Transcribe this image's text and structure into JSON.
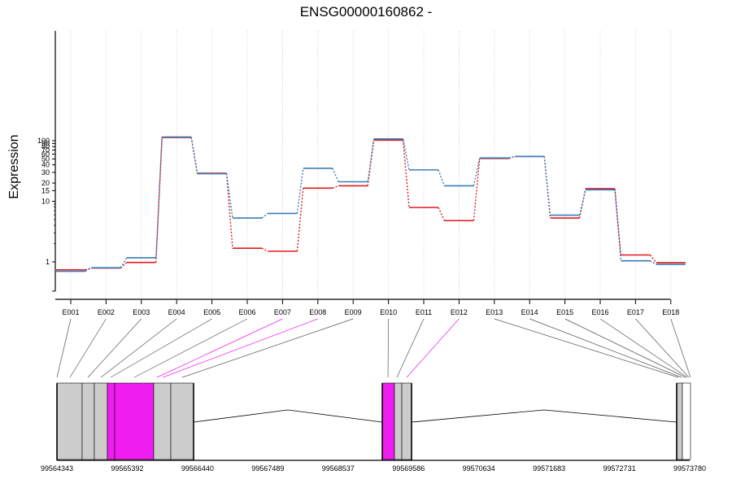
{
  "chart_data": {
    "type": "line",
    "title": "ENSG00000160862 -",
    "ylabel": "Expression",
    "xlabel": "",
    "y_scale": "log",
    "y_ticks": [
      1,
      10,
      15,
      20,
      30,
      40,
      50,
      60,
      70,
      80,
      90,
      100
    ],
    "grid": "vertical dotted lines at each exon",
    "categories": [
      "E001",
      "E002",
      "E003",
      "E004",
      "E005",
      "E006",
      "E007",
      "E008",
      "E009",
      "E010",
      "E011",
      "E012",
      "E013",
      "E014",
      "E015",
      "E016",
      "E017",
      "E018"
    ],
    "series": [
      {
        "color": "#e41a1c",
        "values": [
          0.74,
          0.79,
          0.98,
          113,
          29,
          1.68,
          1.5,
          16.5,
          18,
          102,
          7.9,
          4.8,
          51,
          55,
          5.3,
          16.2,
          1.3,
          0.97
        ]
      },
      {
        "color": "#377eb8",
        "values": [
          0.7,
          0.8,
          1.17,
          115,
          28.5,
          5.3,
          6.3,
          35,
          21,
          107,
          33,
          18,
          52,
          55,
          5.9,
          15.5,
          1.04,
          0.91
        ]
      }
    ],
    "highlighted_exons": [
      "E007",
      "E008",
      "E012"
    ],
    "highlight_color": "#f01df0",
    "genomic_ticks": [
      "99564343",
      "99565392",
      "99566440",
      "99567489",
      "99568537",
      "99569586",
      "99570634",
      "99571683",
      "99572731",
      "99573780"
    ]
  }
}
